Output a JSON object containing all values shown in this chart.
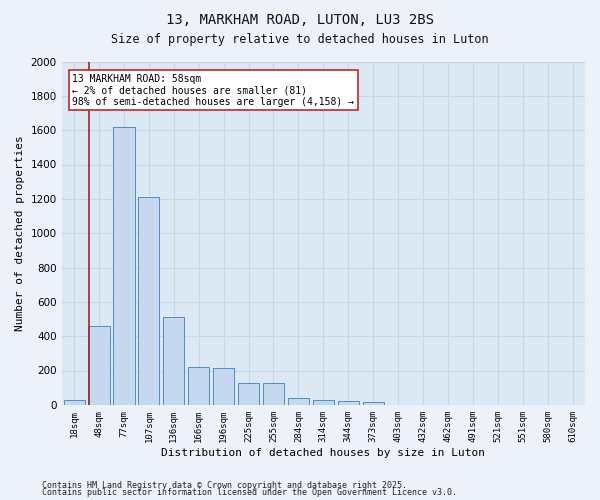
{
  "title1": "13, MARKHAM ROAD, LUTON, LU3 2BS",
  "title2": "Size of property relative to detached houses in Luton",
  "xlabel": "Distribution of detached houses by size in Luton",
  "ylabel": "Number of detached properties",
  "bar_labels": [
    "18sqm",
    "48sqm",
    "77sqm",
    "107sqm",
    "136sqm",
    "166sqm",
    "196sqm",
    "225sqm",
    "255sqm",
    "284sqm",
    "314sqm",
    "344sqm",
    "373sqm",
    "403sqm",
    "432sqm",
    "462sqm",
    "491sqm",
    "521sqm",
    "551sqm",
    "580sqm",
    "610sqm"
  ],
  "bar_values": [
    30,
    460,
    1620,
    1210,
    510,
    220,
    215,
    125,
    125,
    40,
    30,
    20,
    15,
    0,
    0,
    0,
    0,
    0,
    0,
    0,
    0
  ],
  "bar_color": "#c5d8f0",
  "bar_edge_color": "#4a90c4",
  "vline_x_idx": 0.58,
  "vline_color": "#aa2222",
  "annotation_text": "13 MARKHAM ROAD: 58sqm\n← 2% of detached houses are smaller (81)\n98% of semi-detached houses are larger (4,158) →",
  "annotation_box_color": "#ffffff",
  "annotation_box_edge": "#cc2222",
  "ylim": [
    0,
    2000
  ],
  "yticks": [
    0,
    200,
    400,
    600,
    800,
    1000,
    1200,
    1400,
    1600,
    1800,
    2000
  ],
  "plot_bg": "#dde8f5",
  "fig_bg": "#edf2fa",
  "grid_color": "#c8d4e8",
  "footer1": "Contains HM Land Registry data © Crown copyright and database right 2025.",
  "footer2": "Contains public sector information licensed under the Open Government Licence v3.0."
}
